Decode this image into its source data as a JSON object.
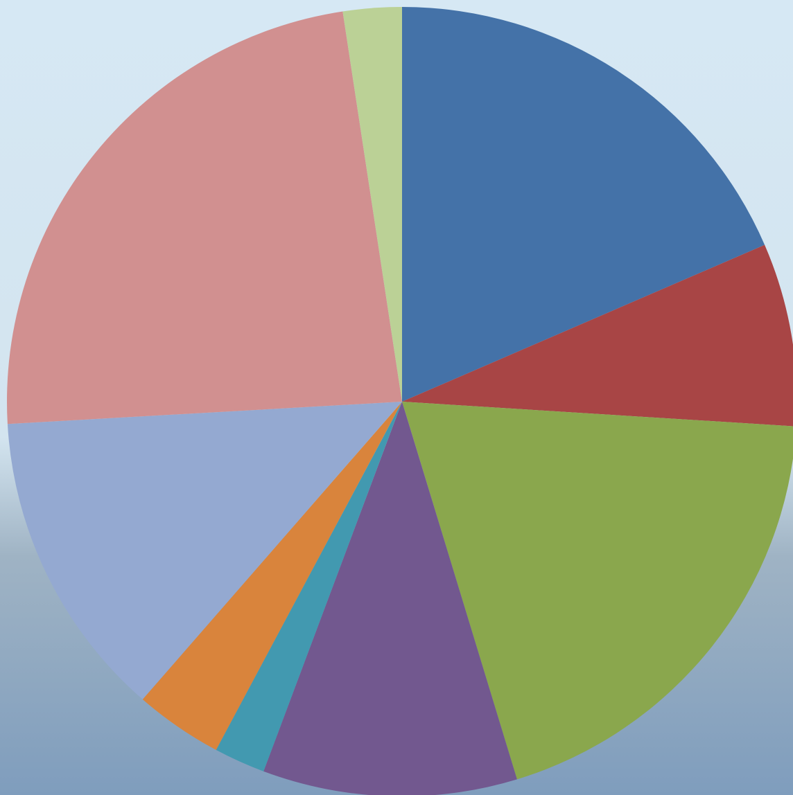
{
  "chart_data": {
    "type": "pie",
    "categories": [
      null,
      null,
      null,
      null,
      null,
      null,
      null,
      null,
      null
    ],
    "values": [
      18.5,
      7.5,
      19.3,
      10.4,
      2.1,
      3.6,
      12.7,
      23.5,
      2.4
    ],
    "colors": [
      "#4472a8",
      "#a84545",
      "#8aa74d",
      "#72588f",
      "#4299b0",
      "#d9843c",
      "#94a9d1",
      "#d19090",
      "#bbd196"
    ]
  }
}
